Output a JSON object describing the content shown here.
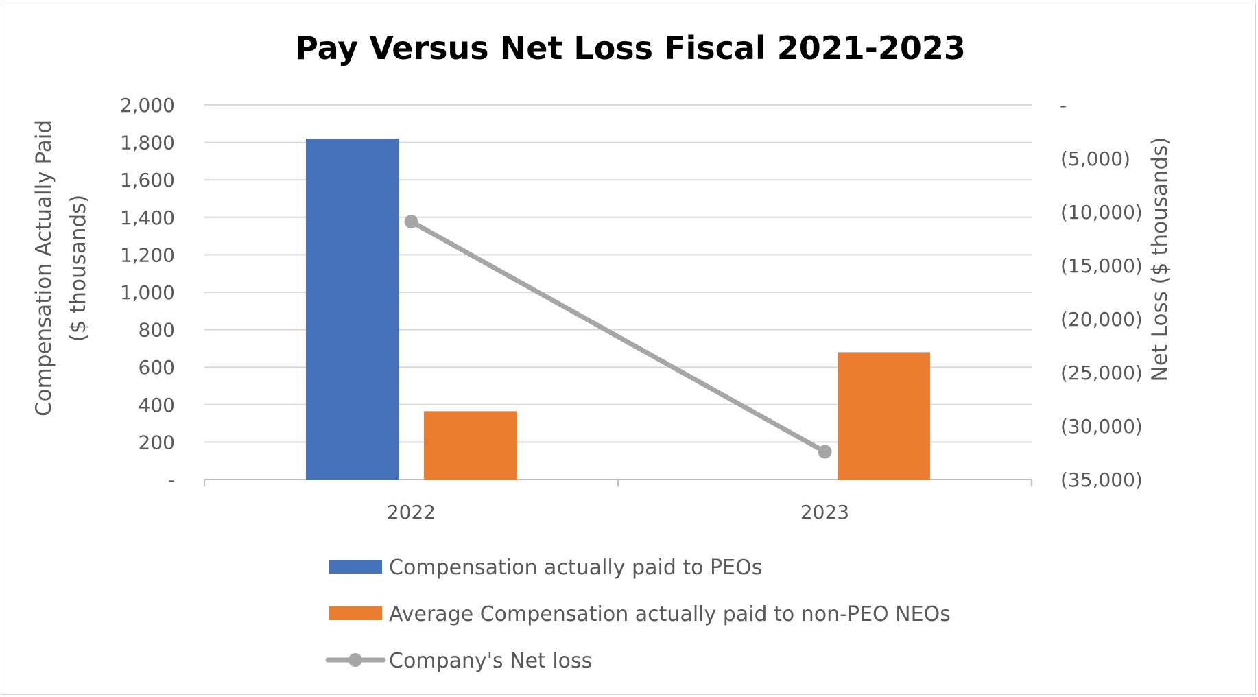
{
  "chart_data": {
    "type": "bar",
    "title": "Pay Versus Net Loss Fiscal 2021-2023",
    "categories": [
      "2022",
      "2023"
    ],
    "series": [
      {
        "name": "Compensation actually paid to PEOs",
        "type": "bar",
        "axis": "left",
        "color": "#4672B9",
        "values": [
          1820,
          null
        ]
      },
      {
        "name": "Average Compensation actually paid to non-PEO NEOs",
        "type": "bar",
        "axis": "left",
        "color": "#EB7D30",
        "values": [
          365,
          680
        ]
      },
      {
        "name": "Company's Net loss",
        "type": "line",
        "axis": "right",
        "color": "#A6A6A6",
        "values": [
          -10900,
          -32400
        ]
      }
    ],
    "left_axis": {
      "label_lines": [
        "Compensation Actually Paid",
        "($ thousands)"
      ],
      "ylim": [
        0,
        2000
      ],
      "tick_values": [
        0,
        200,
        400,
        600,
        800,
        1000,
        1200,
        1400,
        1600,
        1800,
        2000
      ],
      "tick_labels": [
        "-",
        "200",
        "400",
        "600",
        "800",
        "1,000",
        "1,200",
        "1,400",
        "1,600",
        "1,800",
        "2,000"
      ]
    },
    "right_axis": {
      "label": "Net Loss ($ thousands)",
      "ylim": [
        -35000,
        0
      ],
      "tick_values": [
        0,
        -5000,
        -10000,
        -15000,
        -20000,
        -25000,
        -30000,
        -35000
      ],
      "tick_labels": [
        "-",
        "(5,000)",
        "(10,000)",
        "(15,000)",
        "(20,000)",
        "(25,000)",
        "(30,000)",
        "(35,000)"
      ]
    },
    "grid": true,
    "legend_position": "bottom"
  }
}
